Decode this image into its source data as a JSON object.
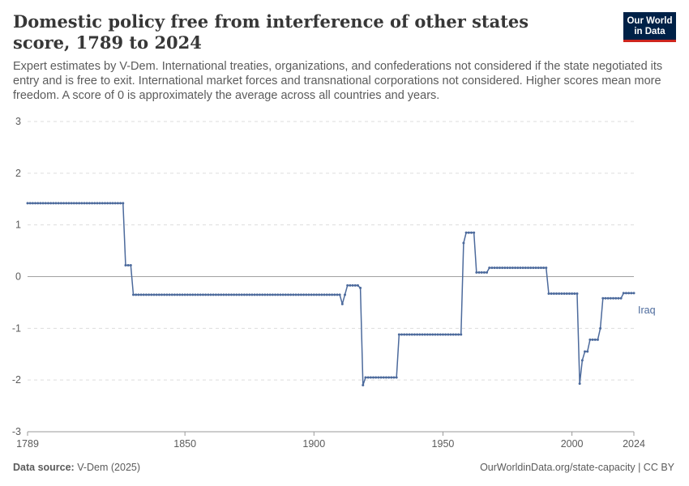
{
  "header": {
    "title": "Domestic policy free from interference of other states score, 1789 to 2024",
    "subtitle": "Expert estimates by V-Dem. International treaties, organizations, and confederations not considered if the state negotiated its entry and is free to exit. International market forces and transnational corporations not considered. Higher scores mean more freedom. A score of 0 is approximately the average across all countries and years.",
    "logo_line1": "Our World",
    "logo_line2": "in Data"
  },
  "footer": {
    "source_label": "Data source:",
    "source_value": "V-Dem (2025)",
    "url": "OurWorldinData.org/state-capacity | CC BY"
  },
  "colors": {
    "series": "#4c6a9c",
    "grid": "#dddddd",
    "zero": "#a1a1a1",
    "text": "#5b5b5b"
  },
  "chart_data": {
    "type": "line",
    "title": "Domestic policy free from interference of other states score, 1789 to 2024",
    "xlabel": "",
    "ylabel": "",
    "xlim": [
      1789,
      2024
    ],
    "ylim": [
      -3,
      3
    ],
    "x_ticks": [
      "1789",
      "1850",
      "1900",
      "1950",
      "2000",
      "2024"
    ],
    "y_ticks": [
      "3",
      "2",
      "1",
      "0",
      "-1",
      "-2",
      "-3"
    ],
    "grid": true,
    "legend": "end-of-line label",
    "series": [
      {
        "name": "Iraq",
        "color": "#4c6a9c",
        "segments": [
          {
            "from": 1789,
            "to": 1826,
            "value": 1.42
          },
          {
            "from": 1827,
            "to": 1829,
            "value": 0.22
          },
          {
            "from": 1830,
            "to": 1910,
            "value": -0.35
          },
          {
            "from": 1911,
            "to": 1911,
            "value": -0.53
          },
          {
            "from": 1912,
            "to": 1912,
            "value": -0.35
          },
          {
            "from": 1913,
            "to": 1917,
            "value": -0.17
          },
          {
            "from": 1918,
            "to": 1918,
            "value": -0.22
          },
          {
            "from": 1919,
            "to": 1919,
            "value": -2.1
          },
          {
            "from": 1920,
            "to": 1932,
            "value": -1.95
          },
          {
            "from": 1933,
            "to": 1957,
            "value": -1.12
          },
          {
            "from": 1958,
            "to": 1958,
            "value": 0.65
          },
          {
            "from": 1959,
            "to": 1962,
            "value": 0.85
          },
          {
            "from": 1963,
            "to": 1967,
            "value": 0.08
          },
          {
            "from": 1968,
            "to": 1990,
            "value": 0.17
          },
          {
            "from": 1991,
            "to": 2002,
            "value": -0.33
          },
          {
            "from": 2003,
            "to": 2003,
            "value": -2.07
          },
          {
            "from": 2004,
            "to": 2004,
            "value": -1.62
          },
          {
            "from": 2005,
            "to": 2006,
            "value": -1.45
          },
          {
            "from": 2007,
            "to": 2010,
            "value": -1.22
          },
          {
            "from": 2011,
            "to": 2011,
            "value": -1.0
          },
          {
            "from": 2012,
            "to": 2019,
            "value": -0.42
          },
          {
            "from": 2020,
            "to": 2024,
            "value": -0.32
          }
        ]
      }
    ]
  }
}
